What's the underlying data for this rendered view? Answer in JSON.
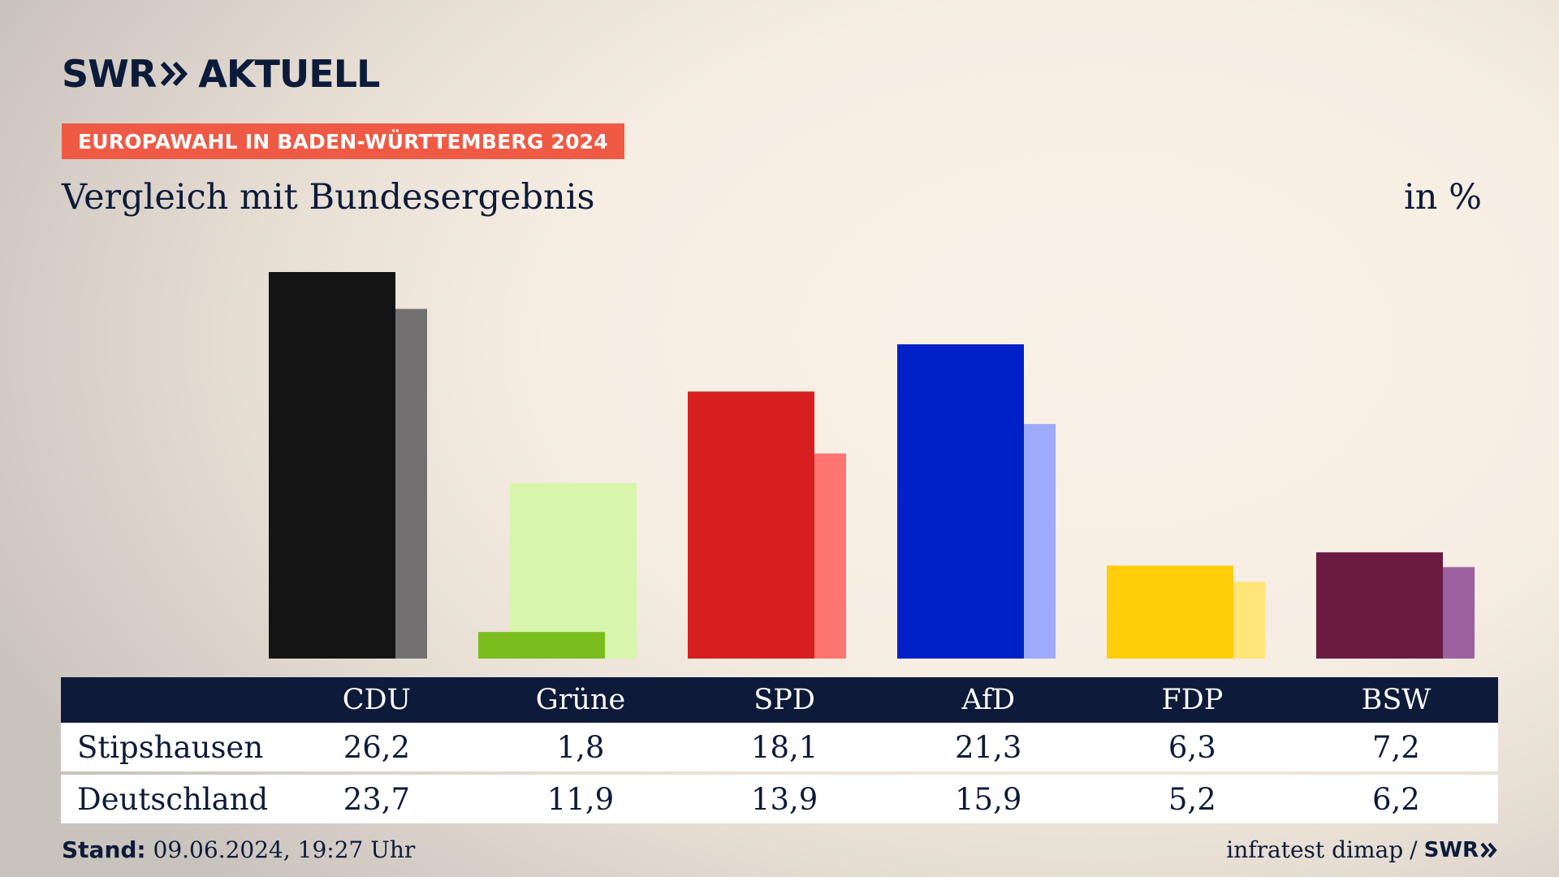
{
  "brand": {
    "logo_swr": "SWR",
    "logo_title": "AKTUELL"
  },
  "kicker": "EUROPAWAHL IN BADEN-WÜRTTEMBERG 2024",
  "subtitle": "Vergleich mit Bundesergebnis",
  "unit": "in %",
  "colors": {
    "accent": "#ef5a45",
    "navy": "#0e1a3a"
  },
  "chart_data": {
    "type": "bar",
    "categories": [
      "CDU",
      "Grüne",
      "SPD",
      "AfD",
      "FDP",
      "BSW"
    ],
    "series": [
      {
        "name": "Stipshausen",
        "values": [
          26.2,
          1.8,
          18.1,
          21.3,
          6.3,
          7.2
        ],
        "colors": [
          "#141414",
          "#78bd1c",
          "#d71f1f",
          "#0020c8",
          "#ffcd0a",
          "#6b1a42"
        ]
      },
      {
        "name": "Deutschland",
        "values": [
          23.7,
          11.9,
          13.9,
          15.9,
          5.2,
          6.2
        ],
        "colors": [
          "#727070",
          "#d7f5ab",
          "#ff7570",
          "#9dabfb",
          "#ffe57a",
          "#9b619e"
        ]
      }
    ],
    "ylim": [
      0,
      26.2
    ],
    "legend": "table below chart"
  },
  "table": {
    "rows": [
      {
        "label": "Stipshausen",
        "values": [
          "26,2",
          "1,8",
          "18,1",
          "21,3",
          "6,3",
          "7,2"
        ]
      },
      {
        "label": "Deutschland",
        "values": [
          "23,7",
          "11,9",
          "13,9",
          "15,9",
          "5,2",
          "6,2"
        ]
      }
    ]
  },
  "footer": {
    "stand_label": "Stand:",
    "stand_value": "09.06.2024, 19:27 Uhr",
    "source": "infratest dimap",
    "separator": "/",
    "source_logo": "SWR"
  }
}
